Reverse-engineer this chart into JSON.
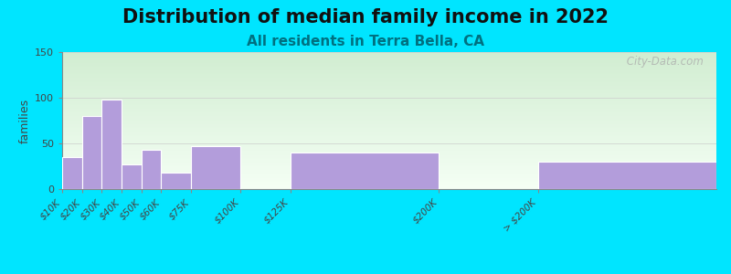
{
  "title": "Distribution of median family income in 2022",
  "subtitle": "All residents in Terra Bella, CA",
  "ylabel": "families",
  "bar_color": "#b39ddb",
  "bar_edge_color": "#ffffff",
  "ylim": [
    0,
    150
  ],
  "yticks": [
    0,
    50,
    100,
    150
  ],
  "background_outer": "#00e5ff",
  "title_fontsize": 15,
  "subtitle_fontsize": 11,
  "subtitle_color": "#007080",
  "watermark": " City-Data.com",
  "categories": [
    "$10K",
    "$20K",
    "$30K",
    "$40K",
    "$50K",
    "$60K",
    "$75K",
    "$100K",
    "$125K",
    "$200K",
    "> $200K"
  ],
  "bin_left": [
    10,
    20,
    30,
    40,
    50,
    60,
    75,
    100,
    125,
    200,
    250
  ],
  "bin_right": [
    20,
    30,
    40,
    50,
    60,
    75,
    100,
    125,
    200,
    250,
    340
  ],
  "values": [
    35,
    80,
    98,
    27,
    43,
    18,
    47,
    0,
    40,
    0,
    30
  ],
  "tick_positions": [
    10,
    20,
    30,
    40,
    50,
    60,
    75,
    100,
    125,
    200,
    250
  ],
  "xmin": 10,
  "xmax": 340
}
